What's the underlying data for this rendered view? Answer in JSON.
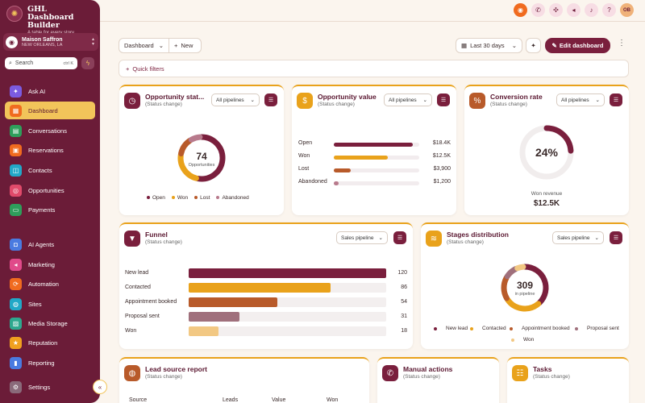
{
  "app": {
    "title": "GHL Dashboard Builder",
    "subtitle": "A table for every story"
  },
  "account": {
    "name": "Maison Saffron",
    "location": "NEW ORLEANS, LA"
  },
  "search": {
    "label": "Search",
    "shortcut": "ctrl K"
  },
  "nav_top": [
    {
      "label": "Ask AI",
      "icon": "sparkle-icon",
      "color": "#7b5be0"
    },
    {
      "label": "Dashboard",
      "icon": "dashboard-icon",
      "color": "#f06b1f",
      "active": true
    },
    {
      "label": "Conversations",
      "icon": "chat-icon",
      "color": "#2e9e5b"
    },
    {
      "label": "Reservations",
      "icon": "calendar-icon",
      "color": "#f06b1f"
    },
    {
      "label": "Contacts",
      "icon": "contacts-icon",
      "color": "#22a8c7"
    },
    {
      "label": "Opportunities",
      "icon": "target-icon",
      "color": "#e04a6a"
    },
    {
      "label": "Payments",
      "icon": "card-icon",
      "color": "#2e9e5b"
    }
  ],
  "nav_bottom": [
    {
      "label": "AI Agents",
      "icon": "robot-icon",
      "color": "#4a7be0"
    },
    {
      "label": "Marketing",
      "icon": "megaphone-icon",
      "color": "#e04a8a"
    },
    {
      "label": "Automation",
      "icon": "automation-icon",
      "color": "#f06b1f"
    },
    {
      "label": "Sites",
      "icon": "globe-icon",
      "color": "#22a8c7"
    },
    {
      "label": "Media Storage",
      "icon": "image-icon",
      "color": "#2ea88f"
    },
    {
      "label": "Reputation",
      "icon": "star-icon",
      "color": "#f0a01f"
    },
    {
      "label": "Reporting",
      "icon": "chart-icon",
      "color": "#4a7be0"
    },
    {
      "label": "Settings",
      "icon": "gear-icon",
      "color": "#8a6a7a"
    }
  ],
  "topbar": {
    "avatar": "OB"
  },
  "toolbar": {
    "dashboard": "Dashboard",
    "new": "New",
    "range": "Last 30 days",
    "edit": "Edit dashboard",
    "quick_filters": "Quick filters"
  },
  "cards": {
    "opp_status": {
      "title": "Opportunity stat...",
      "sub": "(Status change)",
      "select": "All pipelines",
      "center_value": "74",
      "center_label": "Opportunities"
    },
    "opp_value": {
      "title": "Opportunity value",
      "sub": "(Status change)",
      "select": "All pipelines"
    },
    "conversion": {
      "title": "Conversion rate",
      "sub": "(Status change)",
      "select": "All pipelines",
      "percent": "24%",
      "percent_value": 0.24,
      "footer_label": "Won revenue",
      "footer_value": "$12.5K"
    },
    "funnel": {
      "title": "Funnel",
      "sub": "(Status change)",
      "select": "Sales pipeline"
    },
    "stages": {
      "title": "Stages distribution",
      "sub": "(Status change)",
      "select": "Sales pipeline",
      "center_value": "309",
      "center_label": "in pipeline"
    },
    "lead_source": {
      "title": "Lead source report",
      "sub": "(Status change)",
      "columns": [
        "Source",
        "Leads",
        "Value",
        "Won"
      ]
    },
    "manual": {
      "title": "Manual actions",
      "sub": "(Status change)"
    },
    "tasks": {
      "title": "Tasks",
      "sub": "(Status change)"
    }
  },
  "colors": {
    "open": "#7a1f3d",
    "won": "#e9a21b",
    "lost": "#b85a2a",
    "abandoned": "#b87a8c",
    "proposal": "#a0707c",
    "won_light": "#f2c883"
  },
  "chart_data": [
    {
      "type": "pie",
      "name": "Opportunity status",
      "categories": [
        "Open",
        "Won",
        "Lost",
        "Abandoned"
      ],
      "values": [
        40,
        18,
        10,
        6
      ]
    },
    {
      "type": "bar",
      "name": "Opportunity value",
      "categories": [
        "Open",
        "Won",
        "Lost",
        "Abandoned"
      ],
      "values": [
        18.4,
        12.5,
        3.9,
        1.2
      ],
      "labels": [
        "$18.4K",
        "$12.5K",
        "$3,900",
        "$1,200"
      ]
    },
    {
      "type": "bar",
      "name": "Funnel",
      "categories": [
        "New lead",
        "Contacted",
        "Appointment booked",
        "Proposal sent",
        "Won"
      ],
      "values": [
        120,
        86,
        54,
        31,
        18
      ]
    },
    {
      "type": "pie",
      "name": "Stages distribution",
      "categories": [
        "New lead",
        "Contacted",
        "Appointment booked",
        "Proposal sent",
        "Won"
      ],
      "values": [
        120,
        86,
        54,
        31,
        18
      ]
    }
  ]
}
